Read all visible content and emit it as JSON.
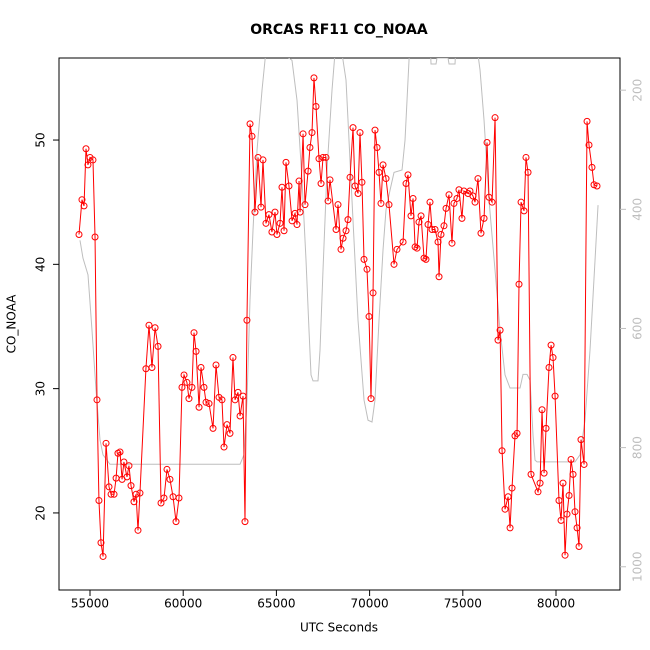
{
  "chart_data": {
    "type": "line",
    "title": "ORCAS RF11 CO_NOAA",
    "x_label": "UTC Seconds",
    "y_label": "CO_NOAA",
    "xlim": [
      53337,
      83433
    ],
    "xticks": [
      55000,
      60000,
      65000,
      70000,
      75000,
      80000
    ],
    "ylim": [
      13.8,
      56.6
    ],
    "yticks": [
      20,
      30,
      40,
      50
    ],
    "y2lim": [
      1039,
      146
    ],
    "y2ticks": [
      200,
      400,
      600,
      800,
      1000
    ],
    "series": [
      {
        "color": "#ff0000",
        "markers": true,
        "x": [
          54410,
          54570,
          54680,
          54785,
          54890,
          55000,
          55160,
          55270,
          55375,
          55480,
          55590,
          55700,
          55860,
          56020,
          56130,
          56290,
          56400,
          56500,
          56610,
          56720,
          56820,
          56985,
          57090,
          57200,
          57360,
          57470,
          57575,
          57680,
          58000,
          58165,
          58325,
          58490,
          58650,
          58810,
          58970,
          59130,
          59290,
          59455,
          59615,
          59775,
          59935,
          60045,
          60200,
          60310,
          60470,
          60580,
          60690,
          60850,
          60955,
          61115,
          61225,
          61385,
          61600,
          61760,
          61920,
          62080,
          62190,
          62350,
          62510,
          62670,
          62780,
          62940,
          63050,
          63210,
          63315,
          63420,
          63585,
          63690,
          63850,
          64015,
          64175,
          64280,
          64440,
          64600,
          64760,
          64925,
          65030,
          65195,
          65300,
          65410,
          65515,
          65675,
          65840,
          66000,
          66105,
          66215,
          66270,
          66430,
          66535,
          66700,
          66800,
          66910,
          67015,
          67125,
          67285,
          67395,
          67500,
          67660,
          67770,
          67875,
          68200,
          68305,
          68465,
          68575,
          68735,
          68840,
          68950,
          69110,
          69215,
          69380,
          69485,
          69590,
          69700,
          69860,
          69970,
          70075,
          70185,
          70290,
          70400,
          70505,
          70610,
          70720,
          70880,
          71040,
          71310,
          71470,
          71795,
          71955,
          72060,
          72220,
          72330,
          72440,
          72545,
          72650,
          72760,
          72920,
          73025,
          73135,
          73240,
          73350,
          73510,
          73670,
          73725,
          73830,
          73990,
          74100,
          74260,
          74420,
          74525,
          74685,
          74795,
          74955,
          75060,
          75280,
          75385,
          75545,
          75655,
          75815,
          75975,
          76140,
          76300,
          76405,
          76570,
          76730,
          76890,
          77000,
          77105,
          77265,
          77430,
          77535,
          77640,
          77800,
          77910,
          78015,
          78125,
          78285,
          78390,
          78500,
          78660,
          79035,
          79145,
          79250,
          79360,
          79465,
          79625,
          79735,
          79840,
          79950,
          80160,
          80270,
          80375,
          80485,
          80590,
          80700,
          80805,
          80915,
          81020,
          81130,
          81235,
          81340,
          81505,
          81665,
          81770,
          81930,
          82040,
          82200
        ],
        "values": [
          42.4,
          45.2,
          44.7,
          49.3,
          48.0,
          48.6,
          48.4,
          42.2,
          29.1,
          21.0,
          17.6,
          16.5,
          25.6,
          22.1,
          21.5,
          21.5,
          22.8,
          24.8,
          24.9,
          22.7,
          24.1,
          22.9,
          23.8,
          22.2,
          20.9,
          21.5,
          18.6,
          21.6,
          31.6,
          35.1,
          31.7,
          34.9,
          33.4,
          20.8,
          21.2,
          23.5,
          22.7,
          21.3,
          19.3,
          21.2,
          30.1,
          31.1,
          30.5,
          29.2,
          30.1,
          34.5,
          33.0,
          28.5,
          31.7,
          30.1,
          28.9,
          28.8,
          26.8,
          31.9,
          29.3,
          29.1,
          25.3,
          27.1,
          26.4,
          32.5,
          29.1,
          29.7,
          27.8,
          29.4,
          19.3,
          35.5,
          51.3,
          50.3,
          44.2,
          48.6,
          44.6,
          48.4,
          43.3,
          44.0,
          42.6,
          44.2,
          42.4,
          43.3,
          46.2,
          42.7,
          48.2,
          46.3,
          43.5,
          44.1,
          43.2,
          46.7,
          44.2,
          50.5,
          44.8,
          47.5,
          49.4,
          50.6,
          55.0,
          52.7,
          48.5,
          46.5,
          48.6,
          48.6,
          45.1,
          46.8,
          42.8,
          44.8,
          41.2,
          42.1,
          42.7,
          43.6,
          47.0,
          51.0,
          46.3,
          45.7,
          50.6,
          46.6,
          40.4,
          39.6,
          35.8,
          29.2,
          37.7,
          50.8,
          49.4,
          47.4,
          44.9,
          48.0,
          46.9,
          44.8,
          40.0,
          41.2,
          41.8,
          46.5,
          47.2,
          43.9,
          45.3,
          41.4,
          41.3,
          43.4,
          43.9,
          40.5,
          40.4,
          43.2,
          45.0,
          42.8,
          42.8,
          41.8,
          39.0,
          42.4,
          43.1,
          44.5,
          45.6,
          41.7,
          44.9,
          45.3,
          46.0,
          43.7,
          45.9,
          45.7,
          45.9,
          45.5,
          45.0,
          46.9,
          42.5,
          43.7,
          49.8,
          45.4,
          45.0,
          51.8,
          33.9,
          34.7,
          25.0,
          20.3,
          21.3,
          18.8,
          22.0,
          26.2,
          26.4,
          38.4,
          45.0,
          44.3,
          48.6,
          47.4,
          23.1,
          21.7,
          22.4,
          28.3,
          23.2,
          26.8,
          31.7,
          33.5,
          32.5,
          29.4,
          21.0,
          19.4,
          22.4,
          16.6,
          19.9,
          21.4,
          24.3,
          23.1,
          20.1,
          18.8,
          17.3,
          25.9,
          23.9,
          51.5,
          49.6,
          47.8,
          46.4,
          46.3
        ]
      },
      {
        "color": "#bebebe",
        "axis": "y2",
        "markers": false,
        "x": [
          54463,
          54624,
          54893,
          55107,
          55322,
          55537,
          55697,
          55912,
          56073,
          63048,
          63262,
          63423,
          63584,
          63745,
          63960,
          64228,
          64496,
          65837,
          66106,
          66374,
          66588,
          66749,
          66857,
          66964,
          67232,
          67340,
          67500,
          67715,
          67983,
          68198,
          68413,
          68734,
          69056,
          69378,
          69700,
          69915,
          70129,
          70290,
          70505,
          70720,
          70880,
          71095,
          71310,
          71739,
          71900,
          72007,
          72168,
          73241,
          73295,
          73563,
          73616,
          74207,
          74261,
          74583,
          74636,
          75709,
          75924,
          76138,
          76406,
          76728,
          76997,
          77265,
          77533,
          78070,
          78230,
          78445,
          78606,
          78767,
          78874,
          78981,
          81020,
          81289,
          81557,
          81825,
          82094,
          82255
        ],
        "values": [
          452,
          482,
          510,
          603,
          703,
          787,
          812,
          821,
          828,
          828,
          812,
          720,
          552,
          435,
          301,
          200,
          116,
          150,
          217,
          351,
          485,
          603,
          678,
          688,
          688,
          636,
          502,
          334,
          200,
          116,
          116,
          183,
          385,
          586,
          720,
          754,
          757,
          720,
          586,
          468,
          401,
          368,
          338,
          334,
          284,
          217,
          116,
          116,
          156,
          156,
          146,
          146,
          156,
          156,
          116,
          116,
          166,
          250,
          385,
          502,
          603,
          678,
          700,
          700,
          677,
          677,
          687,
          779,
          821,
          824,
          824,
          812,
          754,
          636,
          485,
          393
        ]
      }
    ]
  }
}
